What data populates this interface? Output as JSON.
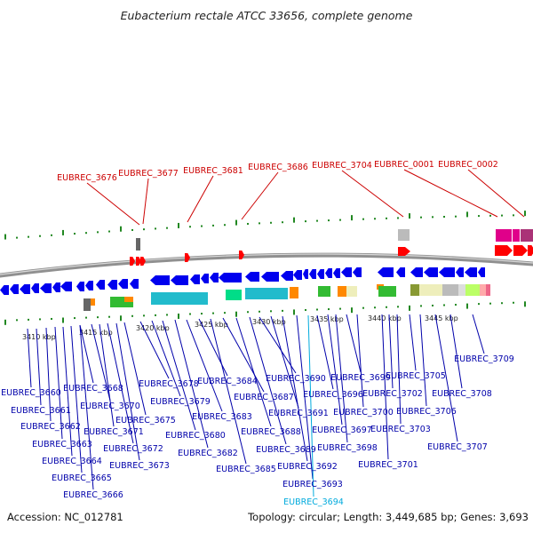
{
  "title": "Eubacterium rectale ATCC 33656, complete genome",
  "footer": {
    "accession": "Accession: NC_012781",
    "topology": "Topology: circular; Length: 3,449,685 bp; Genes: 3,693"
  },
  "colors": {
    "forward_gene": "#ff0000",
    "reverse_gene": "#0000ee",
    "highlight_label": "#00aadd",
    "backbone": "#909090",
    "tick": "#228822"
  },
  "kbp_ticks": [
    "3410 kbp",
    "3415 kbp",
    "3420 kbp",
    "3425 kbp",
    "3430 kbp",
    "3435 kbp",
    "3440 kbp",
    "3445 kbp"
  ],
  "forward_labels": [
    "EUBREC_3676",
    "EUBREC_3677",
    "EUBREC_3681",
    "EUBREC_3686",
    "EUBREC_3704",
    "EUBREC_0001",
    "EUBREC_0002"
  ],
  "reverse_labels": [
    "EUBREC_3660",
    "EUBREC_3661",
    "EUBREC_3662",
    "EUBREC_3663",
    "EUBREC_3664",
    "EUBREC_3665",
    "EUBREC_3666",
    "EUBREC_3668",
    "EUBREC_3670",
    "EUBREC_3671",
    "EUBREC_3672",
    "EUBREC_3673",
    "EUBREC_3675",
    "EUBREC_3678",
    "EUBREC_3679",
    "EUBREC_3680",
    "EUBREC_3682",
    "EUBREC_3683",
    "EUBREC_3684",
    "EUBREC_3685",
    "EUBREC_3687",
    "EUBREC_3688",
    "EUBREC_3689",
    "EUBREC_3690",
    "EUBREC_3691",
    "EUBREC_3692",
    "EUBREC_3693",
    "EUBREC_3694",
    "EUBREC_3696",
    "EUBREC_3697",
    "EUBREC_3698",
    "EUBREC_3699",
    "EUBREC_3700",
    "EUBREC_3701",
    "EUBREC_3702",
    "EUBREC_3703",
    "EUBREC_3705",
    "EUBREC_3706",
    "EUBREC_3707",
    "EUBREC_3708",
    "EUBREC_3709"
  ],
  "highlighted_label": "EUBREC_3694"
}
